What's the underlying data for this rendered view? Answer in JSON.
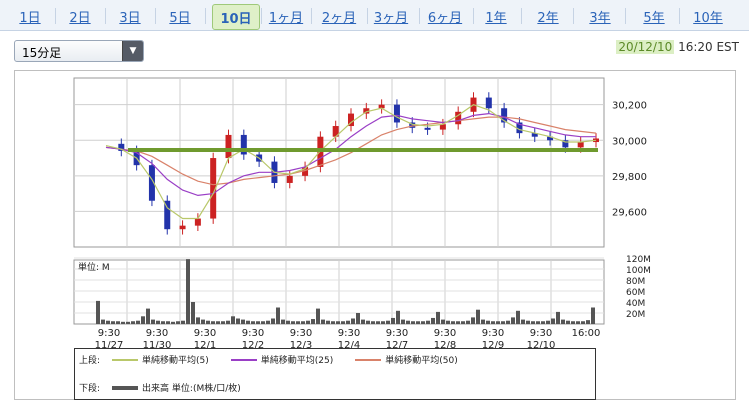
{
  "tabs": [
    {
      "label": "1日"
    },
    {
      "label": "2日"
    },
    {
      "label": "3日"
    },
    {
      "label": "5日"
    },
    {
      "label": "10日",
      "active": true
    },
    {
      "label": "1ヶ月"
    },
    {
      "label": "2ヶ月"
    },
    {
      "label": "3ヶ月"
    },
    {
      "label": "6ヶ月"
    },
    {
      "label": "1年"
    },
    {
      "label": "2年"
    },
    {
      "label": "3年"
    },
    {
      "label": "5年"
    },
    {
      "label": "10年"
    }
  ],
  "interval_select": {
    "value": "15分足"
  },
  "timestamp": {
    "date": "20/12/10",
    "time": "16:20 EST"
  },
  "colors": {
    "up": "#cc2222",
    "down": "#2233aa",
    "ma5": "#b9c86a",
    "ma25": "#9a3fc6",
    "ma50": "#d9826a",
    "hline": "#6f9a2e",
    "volume": "#555555"
  },
  "chart_data": [
    {
      "type": "line",
      "panel": "price",
      "ylim": [
        29400,
        30350
      ],
      "yticks": [
        "30,200",
        "30,000",
        "29,800",
        "29,600"
      ],
      "x_labels": [
        {
          "time": "9:30",
          "date": "11/27"
        },
        {
          "time": "9:30",
          "date": "11/30"
        },
        {
          "time": "9:30",
          "date": "12/1"
        },
        {
          "time": "9:30",
          "date": "12/2"
        },
        {
          "time": "9:30",
          "date": "12/3"
        },
        {
          "time": "9:30",
          "date": "12/4"
        },
        {
          "time": "9:30",
          "date": "12/7"
        },
        {
          "time": "9:30",
          "date": "12/8"
        },
        {
          "time": "9:30",
          "date": "12/9"
        },
        {
          "time": "9:30",
          "date": "12/10"
        },
        {
          "time": "16:00",
          "date": ""
        }
      ],
      "close": [
        29980,
        29940,
        29860,
        29660,
        29500,
        29520,
        29560,
        29900,
        30030,
        29920,
        29880,
        29760,
        29800,
        29850,
        30020,
        30080,
        30150,
        30180,
        30200,
        30100,
        30070,
        30060,
        30090,
        30160,
        30240,
        30180,
        30100,
        30040,
        30020,
        30000,
        29960,
        29990,
        30010
      ],
      "ma5": [
        29970,
        29950,
        29900,
        29780,
        29620,
        29560,
        29560,
        29700,
        29900,
        29950,
        29900,
        29820,
        29810,
        29840,
        29940,
        30020,
        30100,
        30160,
        30180,
        30130,
        30090,
        30080,
        30090,
        30140,
        30200,
        30170,
        30110,
        30060,
        30040,
        30020,
        29990,
        29990,
        30000
      ],
      "ma25": [
        29960,
        29950,
        29930,
        29870,
        29780,
        29720,
        29690,
        29700,
        29760,
        29800,
        29820,
        29820,
        29830,
        29850,
        29900,
        29950,
        30020,
        30080,
        30130,
        30140,
        30120,
        30110,
        30100,
        30110,
        30140,
        30150,
        30130,
        30090,
        30070,
        30050,
        30030,
        30020,
        30020
      ],
      "ma50": [
        29960,
        29950,
        29940,
        29910,
        29860,
        29810,
        29770,
        29750,
        29760,
        29780,
        29790,
        29800,
        29810,
        29830,
        29860,
        29890,
        29930,
        29980,
        30030,
        30060,
        30080,
        30090,
        30100,
        30110,
        30120,
        30130,
        30130,
        30120,
        30100,
        30080,
        30060,
        30050,
        30040
      ],
      "hline": 29945,
      "legend": [
        {
          "label": "単純移動平均(5)"
        },
        {
          "label": "単純移動平均(25)"
        },
        {
          "label": "単純移動平均(50)"
        }
      ]
    },
    {
      "type": "bar",
      "panel": "volume",
      "ylim": [
        0,
        120
      ],
      "yticks": [
        "120M",
        "100M",
        "80M",
        "60M",
        "40M",
        "20M"
      ],
      "unit_label": "単位: M",
      "series": [
        {
          "name": "出来高 単位:(M株/口/枚)",
          "values": [
            42,
            8,
            6,
            5,
            5,
            4,
            4,
            5,
            6,
            14,
            28,
            8,
            6,
            5,
            5,
            4,
            5,
            6,
            118,
            40,
            12,
            8,
            6,
            5,
            5,
            5,
            6,
            14,
            10,
            8,
            6,
            5,
            5,
            5,
            6,
            10,
            30,
            8,
            6,
            5,
            5,
            5,
            6,
            9,
            28,
            8,
            6,
            5,
            5,
            5,
            6,
            10,
            20,
            8,
            6,
            5,
            5,
            5,
            6,
            11,
            24,
            8,
            6,
            5,
            5,
            5,
            6,
            11,
            22,
            8,
            6,
            5,
            5,
            5,
            6,
            12,
            26,
            8,
            6,
            5,
            5,
            5,
            6,
            12,
            24,
            8,
            6,
            5,
            5,
            5,
            6,
            10,
            22,
            8,
            6,
            5,
            5,
            5,
            7,
            30
          ]
        }
      ]
    }
  ],
  "legend": {
    "upper_label": "上段:",
    "lower_label": "下段:",
    "ma5_label": "単純移動平均(5)",
    "ma25_label": "単純移動平均(25)",
    "ma50_label": "単純移動平均(50)",
    "volume_label": "出来高 単位:(M株/口/枚)"
  }
}
